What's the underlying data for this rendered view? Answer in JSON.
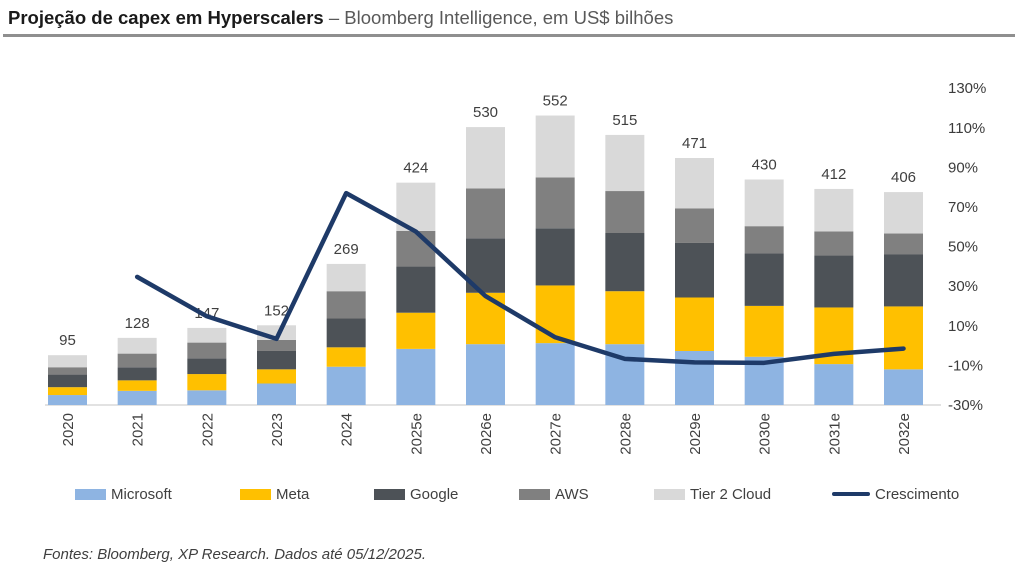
{
  "header": {
    "title_bold": "Projeção de capex em Hyperscalers",
    "title_rest": " – Bloomberg Intelligence, em US$ bilhões"
  },
  "footer": {
    "source_note": "Fontes: Bloomberg, XP Research. Dados até 05/12/2025."
  },
  "colors": {
    "microsoft": "#8EB4E2",
    "meta": "#FFC000",
    "google": "#4D5257",
    "aws": "#808080",
    "tier2_cloud": "#D9D9D9",
    "growth_line": "#1E3A68",
    "label_text": "#3F3F3F",
    "baseline": "#D9D9D9",
    "title_rule": "#8F8F8F"
  },
  "chart_data": {
    "type": "bar",
    "subtype": "stacked-columns-with-growth-line",
    "title": "Projeção de capex em Hyperscalers – Bloomberg Intelligence, em US$ bilhões",
    "categories": [
      "2020",
      "2021",
      "2022",
      "2023",
      "2024",
      "2025e",
      "2026e",
      "2027e",
      "2028e",
      "2029e",
      "2030e",
      "2031e",
      "2032e"
    ],
    "series": [
      {
        "name": "Microsoft",
        "color": "#8EB4E2",
        "values": [
          19,
          27,
          28,
          41,
          73,
          107,
          116,
          118,
          116,
          103,
          92,
          78,
          68
        ]
      },
      {
        "name": "Meta",
        "color": "#FFC000",
        "values": [
          15,
          20,
          31,
          27,
          37,
          69,
          98,
          110,
          101,
          102,
          97,
          108,
          120
        ]
      },
      {
        "name": "Google",
        "color": "#4D5257",
        "values": [
          24,
          25,
          30,
          35,
          55,
          88,
          104,
          109,
          111,
          104,
          100,
          99,
          99
        ]
      },
      {
        "name": "AWS",
        "color": "#808080",
        "values": [
          14,
          26,
          30,
          21,
          52,
          68,
          95,
          97,
          80,
          66,
          52,
          46,
          40
        ]
      },
      {
        "name": "Tier 2 Cloud",
        "color": "#D9D9D9",
        "values": [
          23,
          30,
          28,
          28,
          52,
          92,
          117,
          118,
          107,
          96,
          89,
          81,
          79
        ]
      }
    ],
    "totals": [
      95,
      128,
      147,
      152,
      269,
      424,
      530,
      552,
      515,
      471,
      430,
      412,
      406
    ],
    "line_series": {
      "name": "Crescimento",
      "unit": "%",
      "color": "#1E3A68",
      "values": [
        null,
        34.7,
        14.8,
        3.4,
        77.0,
        57.6,
        25.0,
        4.2,
        -6.7,
        -8.5,
        -8.7,
        -4.2,
        -1.5
      ]
    },
    "right_axis": {
      "ticks": [
        "130%",
        "110%",
        "90%",
        "70%",
        "50%",
        "30%",
        "10%",
        "-10%",
        "-30%"
      ],
      "tick_values": [
        130,
        110,
        90,
        70,
        50,
        30,
        10,
        -10,
        -30
      ],
      "min": -30,
      "max": 130
    },
    "left_axis": {
      "min": 0,
      "max": 600,
      "hidden": true
    },
    "legend": [
      {
        "label": "Microsoft",
        "swatch": "rect",
        "color": "#8EB4E2"
      },
      {
        "label": "Meta",
        "swatch": "rect",
        "color": "#FFC000"
      },
      {
        "label": "Google",
        "swatch": "rect",
        "color": "#4D5257"
      },
      {
        "label": "AWS",
        "swatch": "rect",
        "color": "#808080"
      },
      {
        "label": "Tier 2 Cloud",
        "swatch": "rect",
        "color": "#D9D9D9"
      },
      {
        "label": "Crescimento",
        "swatch": "line",
        "color": "#1E3A68"
      }
    ],
    "grid": false,
    "legend_position": "bottom"
  }
}
